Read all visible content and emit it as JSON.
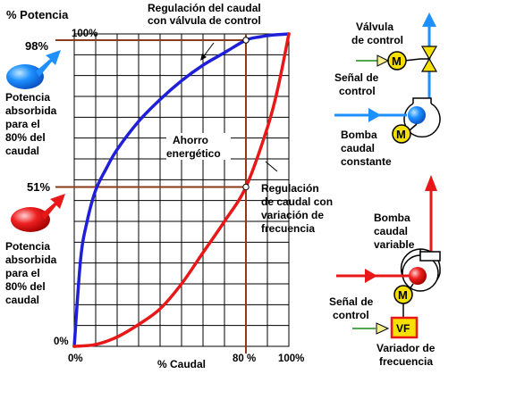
{
  "chart_data": {
    "type": "line",
    "xlabel": "% Caudal",
    "ylabel": "% Potencia",
    "x_ticks": [
      "0%",
      "80 %",
      "100%"
    ],
    "y_ticks": [
      "0%",
      "51%",
      "98%",
      "100%"
    ],
    "xlim": [
      0,
      100
    ],
    "ylim": [
      0,
      100
    ],
    "grid": true,
    "series": [
      {
        "name": "Regulación del caudal con válvula de control",
        "color": "#1f1fd8",
        "x": [
          0,
          3,
          6,
          10,
          15,
          20,
          30,
          40,
          50,
          60,
          70,
          80,
          86,
          92,
          100
        ],
        "y": [
          0,
          28,
          40,
          50,
          57,
          63,
          72,
          79,
          85,
          90,
          94,
          98,
          99,
          99.6,
          100
        ]
      },
      {
        "name": "Regulación de caudal con variación de frecuencia",
        "color": "#e81818",
        "x": [
          0,
          10,
          20,
          30,
          40,
          50,
          60,
          70,
          80,
          90,
          95,
          100
        ],
        "y": [
          0,
          0.6,
          3,
          7,
          12,
          20,
          30,
          40,
          51,
          70,
          83,
          100
        ]
      }
    ],
    "markers": [
      {
        "x": 80,
        "y": 98
      },
      {
        "x": 80,
        "y": 51
      }
    ]
  },
  "labels": {
    "y_axis_title": "% Potencia",
    "x_axis_title": "% Caudal",
    "tick_x0": "0%",
    "tick_x80": "80 %",
    "tick_x100": "100%",
    "tick_y0": "0%",
    "tick_y100": "100%",
    "pct98": "98%",
    "pct51": "51%",
    "valve_curve": [
      "Regulación del caudal",
      "con válvula de control"
    ],
    "ahorro": [
      "Ahorro",
      "energético"
    ],
    "freq_curve": [
      "Regulación",
      "de caudal con",
      "variación de",
      "frecuencia"
    ],
    "potencia_top": [
      "Potencia",
      "absorbida",
      "para el",
      "80% del",
      "caudal"
    ],
    "potencia_bottom": [
      "Potencia",
      "absorbida",
      "para el",
      "80% del",
      "caudal"
    ]
  },
  "diagram": {
    "valvula": [
      "Válvula",
      "de control"
    ],
    "senal_top": [
      "Señal de",
      "control"
    ],
    "bomba_const": [
      "Bomba",
      "caudal",
      "constante"
    ],
    "bomba_var": [
      "Bomba",
      "caudal",
      "variable"
    ],
    "senal_bottom": [
      "Señal de",
      "control"
    ],
    "variador": [
      "Variador de",
      "frecuencia"
    ],
    "motor": "M",
    "vf": "VF",
    "colors": {
      "blue_pipe": "#1e90ff",
      "red_pipe": "#e81818",
      "motor": "#f5e000",
      "vf_fill": "#f5e000",
      "vf_border": "#e81818"
    }
  }
}
